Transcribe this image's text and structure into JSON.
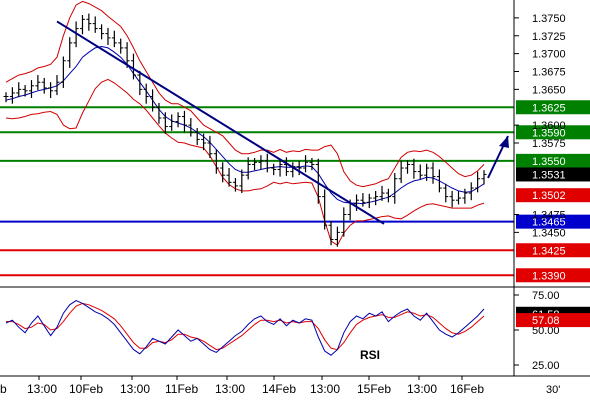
{
  "chart_data": [
    {
      "type": "line",
      "title": "",
      "xlabel": "",
      "ylabel": "",
      "ylim": [
        1.3375,
        1.3775
      ],
      "y_ticks": [
        1.345,
        1.3475,
        1.3575,
        1.36,
        1.365,
        1.3675,
        1.37,
        1.3725,
        1.375
      ],
      "x_tick_labels": [
        "b",
        "13:00",
        "10Feb",
        "13:00",
        "11Feb",
        "13:00",
        "14Feb",
        "13:00",
        "15Feb",
        "13:00",
        "16Feb"
      ],
      "timeframe_label": "30'",
      "grid": false,
      "series": [
        {
          "values": [
            1.364,
            1.3645,
            1.365,
            1.3648,
            1.3655,
            1.366,
            1.3652,
            1.3648,
            1.366,
            1.369,
            1.3715,
            1.3735,
            1.3748,
            1.3742,
            1.3735,
            1.3728,
            1.3722,
            1.3715,
            1.3708,
            1.369,
            1.367,
            1.365,
            1.364,
            1.3625,
            1.361,
            1.3598,
            1.3605,
            1.3612,
            1.36,
            1.359,
            1.358,
            1.3575,
            1.356,
            1.354,
            1.353,
            1.352,
            1.3515,
            1.353,
            1.3545,
            1.3548,
            1.355,
            1.354,
            1.3538,
            1.3545,
            1.3535,
            1.3542,
            1.354,
            1.3548,
            1.3545,
            1.35,
            1.346,
            1.344,
            1.345,
            1.3475,
            1.349,
            1.3495,
            1.3492,
            1.3498,
            1.35,
            1.3505,
            1.35,
            1.3525,
            1.354,
            1.3545,
            1.3535,
            1.353,
            1.354,
            1.3528,
            1.3512,
            1.35,
            1.3495,
            1.3498,
            1.3505,
            1.3512,
            1.3525,
            1.3531
          ]
        },
        {
          "values": [
            1.3635,
            1.3637,
            1.364,
            1.3642,
            1.3645,
            1.3648,
            1.365,
            1.3652,
            1.3655,
            1.3662,
            1.3672,
            1.3682,
            1.3695,
            1.3702,
            1.3708,
            1.371,
            1.3708,
            1.3702,
            1.3695,
            1.3685,
            1.3672,
            1.366,
            1.3648,
            1.3635,
            1.3622,
            1.3612,
            1.3606,
            1.3603,
            1.36,
            1.3596,
            1.359,
            1.3584,
            1.3576,
            1.3566,
            1.3556,
            1.3546,
            1.3538,
            1.3534,
            1.3534,
            1.3536,
            1.3538,
            1.354,
            1.3541,
            1.3542,
            1.3541,
            1.3541,
            1.3541,
            1.3543,
            1.3542,
            1.3532,
            1.3518,
            1.3505,
            1.3496,
            1.3492,
            1.3491,
            1.3491,
            1.349,
            1.3492,
            1.3494,
            1.3497,
            1.3499,
            1.3505,
            1.3512,
            1.3518,
            1.3522,
            1.3524,
            1.3527,
            1.3526,
            1.3522,
            1.3517,
            1.3512,
            1.3508,
            1.3506,
            1.3507,
            1.3512,
            1.3518
          ]
        },
        {
          "values": [
            1.366,
            1.3665,
            1.367,
            1.3672,
            1.3675,
            1.368,
            1.3682,
            1.3685,
            1.3695,
            1.3725,
            1.375,
            1.3768,
            1.3773,
            1.377,
            1.3765,
            1.376,
            1.3752,
            1.3745,
            1.3738,
            1.3725,
            1.3708,
            1.369,
            1.3675,
            1.366,
            1.3645,
            1.3635,
            1.363,
            1.363,
            1.3625,
            1.362,
            1.361,
            1.36,
            1.3595,
            1.359,
            1.3585,
            1.3575,
            1.3565,
            1.356,
            1.356,
            1.3562,
            1.3565,
            1.3565,
            1.3562,
            1.3566,
            1.3562,
            1.3564,
            1.3563,
            1.3566,
            1.3565,
            1.3565,
            1.357,
            1.3572,
            1.356,
            1.3535,
            1.3522,
            1.3516,
            1.3514,
            1.3516,
            1.3518,
            1.3522,
            1.3525,
            1.354,
            1.3555,
            1.3562,
            1.3564,
            1.3563,
            1.3565,
            1.3562,
            1.3556,
            1.3548,
            1.354,
            1.3532,
            1.3528,
            1.353,
            1.3536,
            1.3545
          ]
        },
        {
          "values": [
            1.361,
            1.3609,
            1.361,
            1.3612,
            1.3615,
            1.3616,
            1.3618,
            1.3619,
            1.3615,
            1.36,
            1.3595,
            1.3596,
            1.3617,
            1.3634,
            1.3651,
            1.366,
            1.3664,
            1.3659,
            1.3652,
            1.3645,
            1.3636,
            1.363,
            1.3621,
            1.361,
            1.3599,
            1.3589,
            1.3582,
            1.3576,
            1.3575,
            1.3572,
            1.357,
            1.3568,
            1.3557,
            1.3542,
            1.3527,
            1.3517,
            1.3511,
            1.3508,
            1.3508,
            1.351,
            1.3511,
            1.3515,
            1.352,
            1.3518,
            1.352,
            1.3518,
            1.3519,
            1.352,
            1.3519,
            1.3499,
            1.3466,
            1.3438,
            1.3432,
            1.3449,
            1.346,
            1.3466,
            1.3466,
            1.3468,
            1.347,
            1.3472,
            1.3473,
            1.347,
            1.3469,
            1.3474,
            1.348,
            1.3485,
            1.3489,
            1.349,
            1.3488,
            1.3486,
            1.3484,
            1.3484,
            1.3484,
            1.3484,
            1.3488,
            1.3491
          ]
        }
      ],
      "trendline": {
        "start": [
          8,
          1.3745
        ],
        "end": [
          59,
          1.3462
        ]
      },
      "levels": [
        {
          "value": 1.3625,
          "label": "1.3625",
          "color": "#008000"
        },
        {
          "value": 1.359,
          "label": "1.3590",
          "color": "#008000"
        },
        {
          "value": 1.355,
          "label": "1.3550",
          "color": "#008000"
        },
        {
          "value": 1.3465,
          "label": "1.3465",
          "color": "#0000cc"
        },
        {
          "value": 1.3425,
          "label": "1.3425",
          "color": "#e00000"
        },
        {
          "value": 1.339,
          "label": "1.3390",
          "color": "#e00000"
        }
      ],
      "markers": [
        {
          "value": 1.3531,
          "label": "1.3531",
          "color": "#000000"
        },
        {
          "value": 1.3502,
          "label": "1.3502",
          "color": "#e00000"
        }
      ],
      "colors": {
        "price": "#000000",
        "band": "#d00000",
        "ma": "#0000aa",
        "trend": "#000080",
        "arrow": "#000080"
      }
    },
    {
      "type": "line",
      "title": "RSI",
      "ylim": [
        20,
        80
      ],
      "y_ticks": [
        25.0,
        50.0,
        75.0
      ],
      "series": [
        {
          "values": [
            55,
            57,
            52,
            48,
            55,
            60,
            53,
            46,
            52,
            62,
            68,
            71,
            69,
            66,
            63,
            61,
            58,
            54,
            48,
            42,
            36,
            33,
            38,
            44,
            42,
            40,
            45,
            50,
            46,
            42,
            44,
            40,
            36,
            34,
            38,
            42,
            46,
            49,
            54,
            58,
            60,
            56,
            54,
            58,
            53,
            57,
            55,
            58,
            57,
            45,
            35,
            32,
            36,
            48,
            56,
            60,
            58,
            62,
            60,
            63,
            56,
            60,
            63,
            65,
            60,
            57,
            62,
            56,
            50,
            47,
            45,
            48,
            52,
            56,
            60,
            65
          ]
        },
        {
          "values": [
            56,
            56,
            54,
            51,
            52,
            55,
            54,
            50,
            51,
            56,
            62,
            67,
            69,
            68,
            66,
            64,
            61,
            58,
            53,
            47,
            41,
            37,
            37,
            41,
            42,
            41,
            43,
            47,
            47,
            45,
            44,
            42,
            39,
            36,
            37,
            40,
            43,
            46,
            50,
            54,
            57,
            57,
            56,
            57,
            55,
            56,
            55,
            56,
            56,
            51,
            43,
            37,
            36,
            41,
            48,
            54,
            57,
            59,
            60,
            61,
            59,
            59,
            61,
            63,
            62,
            60,
            61,
            59,
            55,
            51,
            48,
            47,
            49,
            52,
            56,
            60
          ]
        }
      ],
      "readouts": [
        {
          "value": 61.58,
          "label": "61.58",
          "color": "#000000"
        },
        {
          "value": 57.08,
          "label": "57.08",
          "color": "#e00000"
        }
      ],
      "colors": {
        "rsi": "#0000aa",
        "signal": "#e00000"
      }
    }
  ]
}
